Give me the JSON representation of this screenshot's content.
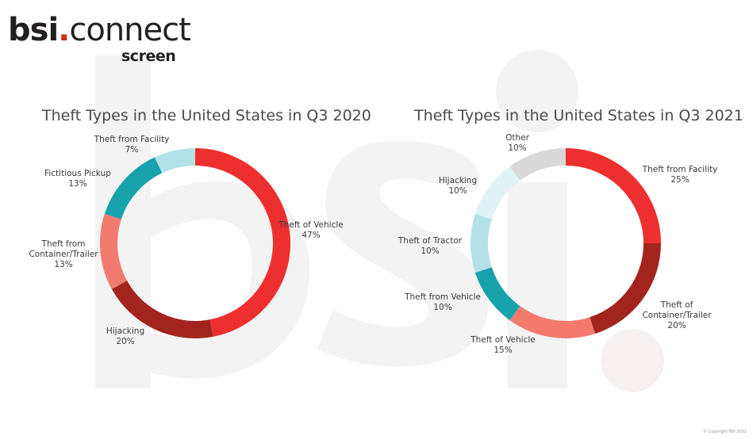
{
  "brand": {
    "name_prefix": "bsi",
    "name_dot": ".",
    "name_suffix": "connect",
    "product": "screen"
  },
  "footer": {
    "copyright": "© Copyright BSI 2022"
  },
  "colors": {
    "red": "#ee2f2f",
    "dark_red": "#a3241f",
    "salmon": "#f27a6f",
    "teal": "#17a2ac",
    "light_teal": "#b3e1e7",
    "pale_teal": "#dff2f5",
    "gray": "#d9d9d9"
  },
  "chart_data": [
    {
      "type": "pie",
      "title": "Theft Types in the United States in Q3 2020",
      "slices": [
        {
          "label": "Theft of Vehicle",
          "value": 47,
          "color": "#ee2f2f"
        },
        {
          "label": "Hijacking",
          "value": 20,
          "color": "#a3241f"
        },
        {
          "label": "Theft from Container/Trailer",
          "value": 13,
          "color": "#f27a6f"
        },
        {
          "label": "Fictitious Pickup",
          "value": 13,
          "color": "#17a2ac"
        },
        {
          "label": "Theft from Facility",
          "value": 7,
          "color": "#b3e1e7"
        }
      ]
    },
    {
      "type": "pie",
      "title": "Theft Types in the United States in Q3 2021",
      "slices": [
        {
          "label": "Theft from Facility",
          "value": 25,
          "color": "#ee2f2f"
        },
        {
          "label": "Theft of Container/Trailer",
          "value": 20,
          "color": "#a3241f"
        },
        {
          "label": "Theft of Vehicle",
          "value": 15,
          "color": "#f27a6f"
        },
        {
          "label": "Theft from Vehicle",
          "value": 10,
          "color": "#17a2ac"
        },
        {
          "label": "Theft of Tractor",
          "value": 10,
          "color": "#b3e1e7"
        },
        {
          "label": "Hijacking",
          "value": 10,
          "color": "#dff2f5"
        },
        {
          "label": "Other",
          "value": 10,
          "color": "#d9d9d9"
        }
      ]
    }
  ]
}
